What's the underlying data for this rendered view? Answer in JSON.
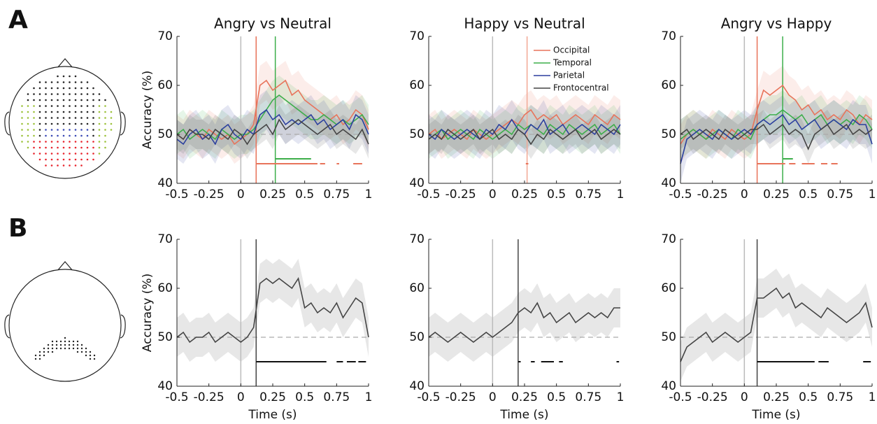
{
  "panel_labels": [
    "A",
    "B"
  ],
  "chart_data": [
    {
      "type": "line",
      "title": "Angry vs Neutral",
      "ylabel": "Accuracy (%)",
      "xlim": [
        -0.5,
        1
      ],
      "ylim": [
        40,
        70
      ],
      "xticks": [
        -0.5,
        -0.25,
        0,
        0.25,
        0.5,
        0.75,
        1
      ],
      "yticks": [
        40,
        50,
        60,
        70
      ],
      "stimulus_onset": 0,
      "chance": 50,
      "x": [
        -0.5,
        -0.45,
        -0.4,
        -0.35,
        -0.3,
        -0.25,
        -0.2,
        -0.15,
        -0.1,
        -0.05,
        0,
        0.05,
        0.1,
        0.15,
        0.2,
        0.25,
        0.3,
        0.35,
        0.4,
        0.45,
        0.5,
        0.55,
        0.6,
        0.65,
        0.7,
        0.75,
        0.8,
        0.85,
        0.9,
        0.95,
        1
      ],
      "series": [
        {
          "color": "#e8735a",
          "error": 4,
          "values": [
            50,
            49,
            51,
            50,
            49,
            51,
            50,
            49,
            50,
            48,
            49,
            50,
            52,
            60,
            61,
            59,
            60,
            61,
            58,
            59,
            57,
            56,
            55,
            54,
            53,
            54,
            52,
            53,
            55,
            54,
            51
          ]
        },
        {
          "color": "#3cae4a",
          "error": 4,
          "values": [
            50,
            51,
            49,
            50,
            51,
            50,
            49,
            51,
            50,
            49,
            50,
            50,
            51,
            53,
            55,
            57,
            58,
            57,
            56,
            55,
            54,
            53,
            53,
            54,
            53,
            52,
            53,
            52,
            53,
            54,
            52
          ]
        },
        {
          "color": "#2b3f9e",
          "error": 4,
          "values": [
            49,
            48,
            50,
            51,
            49,
            50,
            48,
            51,
            52,
            50,
            49,
            51,
            50,
            54,
            55,
            53,
            54,
            52,
            53,
            52,
            53,
            54,
            52,
            53,
            51,
            52,
            53,
            51,
            54,
            53,
            50
          ]
        },
        {
          "color": "#444444",
          "error": 3,
          "values": [
            50,
            49,
            51,
            50,
            50,
            49,
            51,
            50,
            49,
            51,
            50,
            48,
            50,
            51,
            52,
            50,
            53,
            51,
            52,
            53,
            52,
            51,
            50,
            51,
            52,
            50,
            51,
            50,
            49,
            51,
            48
          ]
        }
      ],
      "onsets": [
        {
          "value": 0.12,
          "color": "#e8735a"
        },
        {
          "value": 0.27,
          "color": "#3cae4a"
        }
      ],
      "significance": [
        {
          "color": "#e8735a",
          "y": 44,
          "segments": [
            [
              0.12,
              0.6
            ],
            [
              0.62,
              0.66
            ],
            [
              0.75,
              0.77
            ],
            [
              0.88,
              0.95
            ]
          ]
        },
        {
          "color": "#3cae4a",
          "y": 45,
          "segments": [
            [
              0.27,
              0.55
            ]
          ]
        }
      ]
    },
    {
      "type": "line",
      "title": "Happy vs Neutral",
      "legend": "upper right",
      "xlim": [
        -0.5,
        1
      ],
      "ylim": [
        40,
        70
      ],
      "xticks": [
        -0.5,
        -0.25,
        0,
        0.25,
        0.5,
        0.75,
        1
      ],
      "yticks": [
        40,
        50,
        60,
        70
      ],
      "stimulus_onset": 0,
      "chance": 50,
      "x": [
        -0.5,
        -0.45,
        -0.4,
        -0.35,
        -0.3,
        -0.25,
        -0.2,
        -0.15,
        -0.1,
        -0.05,
        0,
        0.05,
        0.1,
        0.15,
        0.2,
        0.25,
        0.3,
        0.35,
        0.4,
        0.45,
        0.5,
        0.55,
        0.6,
        0.65,
        0.7,
        0.75,
        0.8,
        0.85,
        0.9,
        0.95,
        1
      ],
      "series": [
        {
          "name": "Occipital",
          "color": "#e8735a",
          "error": 4,
          "values": [
            50,
            51,
            49,
            50,
            51,
            50,
            49,
            51,
            50,
            49,
            50,
            51,
            52,
            53,
            52,
            54,
            55,
            53,
            54,
            53,
            54,
            52,
            53,
            54,
            53,
            52,
            54,
            53,
            52,
            54,
            53
          ]
        },
        {
          "name": "Temporal",
          "color": "#3cae4a",
          "error": 4,
          "values": [
            49,
            50,
            51,
            49,
            50,
            51,
            50,
            49,
            51,
            50,
            49,
            50,
            51,
            50,
            52,
            51,
            52,
            51,
            50,
            52,
            51,
            50,
            52,
            51,
            50,
            51,
            52,
            50,
            51,
            52,
            50
          ]
        },
        {
          "name": "Parietal",
          "color": "#2b3f9e",
          "error": 4,
          "values": [
            50,
            49,
            51,
            50,
            49,
            50,
            51,
            50,
            49,
            51,
            50,
            52,
            51,
            53,
            51,
            50,
            52,
            51,
            53,
            50,
            51,
            52,
            50,
            51,
            52,
            51,
            50,
            52,
            51,
            50,
            52
          ]
        },
        {
          "name": "Frontocentral",
          "color": "#444444",
          "error": 3,
          "values": [
            49,
            50,
            49,
            51,
            50,
            49,
            50,
            51,
            49,
            50,
            51,
            49,
            50,
            49,
            51,
            50,
            48,
            50,
            49,
            51,
            50,
            49,
            50,
            51,
            49,
            50,
            51,
            49,
            50,
            51,
            50
          ]
        }
      ],
      "onsets": [
        {
          "value": 0.27,
          "color": "#f2a896"
        }
      ],
      "significance": [
        {
          "color": "#e8735a",
          "y": 44,
          "segments": [
            [
              0.26,
              0.28
            ]
          ]
        }
      ]
    },
    {
      "type": "line",
      "title": "Angry vs Happy",
      "xlim": [
        -0.5,
        1
      ],
      "ylim": [
        40,
        70
      ],
      "xticks": [
        -0.5,
        -0.25,
        0,
        0.25,
        0.5,
        0.75,
        1
      ],
      "yticks": [
        40,
        50,
        60,
        70
      ],
      "stimulus_onset": 0,
      "chance": 50,
      "x": [
        -0.5,
        -0.45,
        -0.4,
        -0.35,
        -0.3,
        -0.25,
        -0.2,
        -0.15,
        -0.1,
        -0.05,
        0,
        0.05,
        0.1,
        0.15,
        0.2,
        0.25,
        0.3,
        0.35,
        0.4,
        0.45,
        0.5,
        0.55,
        0.6,
        0.65,
        0.7,
        0.75,
        0.8,
        0.85,
        0.9,
        0.95,
        1
      ],
      "series": [
        {
          "color": "#e8735a",
          "error": 4,
          "values": [
            48,
            50,
            51,
            50,
            49,
            51,
            50,
            49,
            51,
            50,
            49,
            50,
            55,
            59,
            58,
            59,
            60,
            58,
            57,
            55,
            56,
            54,
            55,
            53,
            54,
            53,
            55,
            54,
            52,
            54,
            53
          ]
        },
        {
          "color": "#3cae4a",
          "error": 4,
          "values": [
            49,
            50,
            51,
            50,
            49,
            50,
            51,
            50,
            49,
            51,
            50,
            49,
            52,
            53,
            54,
            54,
            55,
            54,
            53,
            54,
            52,
            53,
            54,
            52,
            53,
            52,
            53,
            52,
            54,
            53,
            51
          ]
        },
        {
          "color": "#2b3f9e",
          "error": 4,
          "values": [
            44,
            49,
            50,
            51,
            50,
            49,
            51,
            50,
            49,
            50,
            51,
            50,
            52,
            53,
            52,
            53,
            54,
            52,
            53,
            51,
            52,
            53,
            51,
            52,
            53,
            52,
            51,
            53,
            52,
            52,
            48
          ]
        },
        {
          "color": "#444444",
          "error": 3,
          "values": [
            50,
            51,
            49,
            50,
            51,
            50,
            49,
            51,
            50,
            49,
            50,
            51,
            51,
            52,
            50,
            51,
            52,
            50,
            51,
            50,
            47,
            50,
            51,
            52,
            50,
            51,
            52,
            50,
            51,
            50,
            51
          ]
        }
      ],
      "onsets": [
        {
          "value": 0.1,
          "color": "#e8735a"
        },
        {
          "value": 0.3,
          "color": "#3cae4a"
        }
      ],
      "significance": [
        {
          "color": "#e8735a",
          "y": 44,
          "segments": [
            [
              0.1,
              0.32
            ],
            [
              0.35,
              0.4
            ],
            [
              0.45,
              0.55
            ],
            [
              0.6,
              0.65
            ],
            [
              0.68,
              0.73
            ]
          ]
        },
        {
          "color": "#3cae4a",
          "y": 45,
          "segments": [
            [
              0.3,
              0.38
            ]
          ]
        }
      ]
    },
    {
      "type": "line",
      "ylabel": "Accuracy (%)",
      "xlabel": "Time (s)",
      "xlim": [
        -0.5,
        1
      ],
      "ylim": [
        40,
        70
      ],
      "xticks": [
        -0.5,
        -0.25,
        0,
        0.25,
        0.5,
        0.75,
        1
      ],
      "yticks": [
        40,
        50,
        60,
        70
      ],
      "stimulus_onset": 0,
      "chance": 50,
      "x": [
        -0.5,
        -0.45,
        -0.4,
        -0.35,
        -0.3,
        -0.25,
        -0.2,
        -0.15,
        -0.1,
        -0.05,
        0,
        0.05,
        0.1,
        0.15,
        0.2,
        0.25,
        0.3,
        0.35,
        0.4,
        0.45,
        0.5,
        0.55,
        0.6,
        0.65,
        0.7,
        0.75,
        0.8,
        0.85,
        0.9,
        0.95,
        1
      ],
      "series": [
        {
          "color": "#444444",
          "error": 4,
          "values": [
            50,
            51,
            49,
            50,
            50,
            51,
            49,
            50,
            51,
            50,
            49,
            50,
            52,
            61,
            62,
            61,
            62,
            61,
            60,
            62,
            56,
            57,
            55,
            56,
            55,
            57,
            54,
            56,
            58,
            57,
            50
          ]
        }
      ],
      "onsets": [
        {
          "value": 0.12,
          "color": "#444444"
        }
      ],
      "significance": [
        {
          "color": "#111111",
          "y": 45,
          "segments": [
            [
              0.12,
              0.67
            ],
            [
              0.75,
              0.8
            ],
            [
              0.83,
              0.9
            ],
            [
              0.92,
              0.98
            ]
          ]
        }
      ]
    },
    {
      "type": "line",
      "xlabel": "Time (s)",
      "xlim": [
        -0.5,
        1
      ],
      "ylim": [
        40,
        70
      ],
      "xticks": [
        -0.5,
        -0.25,
        0,
        0.25,
        0.5,
        0.75,
        1
      ],
      "yticks": [
        40,
        50,
        60,
        70
      ],
      "stimulus_onset": 0,
      "chance": 50,
      "x": [
        -0.5,
        -0.45,
        -0.4,
        -0.35,
        -0.3,
        -0.25,
        -0.2,
        -0.15,
        -0.1,
        -0.05,
        0,
        0.05,
        0.1,
        0.15,
        0.2,
        0.25,
        0.3,
        0.35,
        0.4,
        0.45,
        0.5,
        0.55,
        0.6,
        0.65,
        0.7,
        0.75,
        0.8,
        0.85,
        0.9,
        0.95,
        1
      ],
      "series": [
        {
          "color": "#444444",
          "error": 4,
          "values": [
            50,
            51,
            50,
            49,
            50,
            51,
            50,
            49,
            50,
            51,
            50,
            51,
            52,
            53,
            55,
            56,
            55,
            57,
            54,
            55,
            53,
            54,
            55,
            53,
            54,
            55,
            54,
            55,
            54,
            56,
            56
          ]
        }
      ],
      "onsets": [
        {
          "value": 0.2,
          "color": "#444444"
        }
      ],
      "significance": [
        {
          "color": "#111111",
          "y": 45,
          "segments": [
            [
              0.2,
              0.22
            ],
            [
              0.3,
              0.33
            ],
            [
              0.38,
              0.48
            ],
            [
              0.52,
              0.55
            ],
            [
              0.97,
              0.99
            ]
          ]
        }
      ]
    },
    {
      "type": "line",
      "xlabel": "Time (s)",
      "xlim": [
        -0.5,
        1
      ],
      "ylim": [
        40,
        70
      ],
      "xticks": [
        -0.5,
        -0.25,
        0,
        0.25,
        0.5,
        0.75,
        1
      ],
      "yticks": [
        40,
        50,
        60,
        70
      ],
      "stimulus_onset": 0,
      "chance": 50,
      "x": [
        -0.5,
        -0.45,
        -0.4,
        -0.35,
        -0.3,
        -0.25,
        -0.2,
        -0.15,
        -0.1,
        -0.05,
        0,
        0.05,
        0.1,
        0.15,
        0.2,
        0.25,
        0.3,
        0.35,
        0.4,
        0.45,
        0.5,
        0.55,
        0.6,
        0.65,
        0.7,
        0.75,
        0.8,
        0.85,
        0.9,
        0.95,
        1
      ],
      "series": [
        {
          "color": "#444444",
          "error": 4,
          "values": [
            45,
            48,
            49,
            50,
            51,
            49,
            50,
            51,
            50,
            49,
            50,
            51,
            58,
            58,
            59,
            60,
            58,
            59,
            56,
            57,
            56,
            55,
            54,
            56,
            55,
            54,
            53,
            54,
            55,
            57,
            52
          ]
        }
      ],
      "onsets": [
        {
          "value": 0.1,
          "color": "#444444"
        }
      ],
      "significance": [
        {
          "color": "#111111",
          "y": 45,
          "segments": [
            [
              0.1,
              0.55
            ],
            [
              0.58,
              0.66
            ],
            [
              0.93,
              0.99
            ]
          ]
        }
      ]
    }
  ]
}
